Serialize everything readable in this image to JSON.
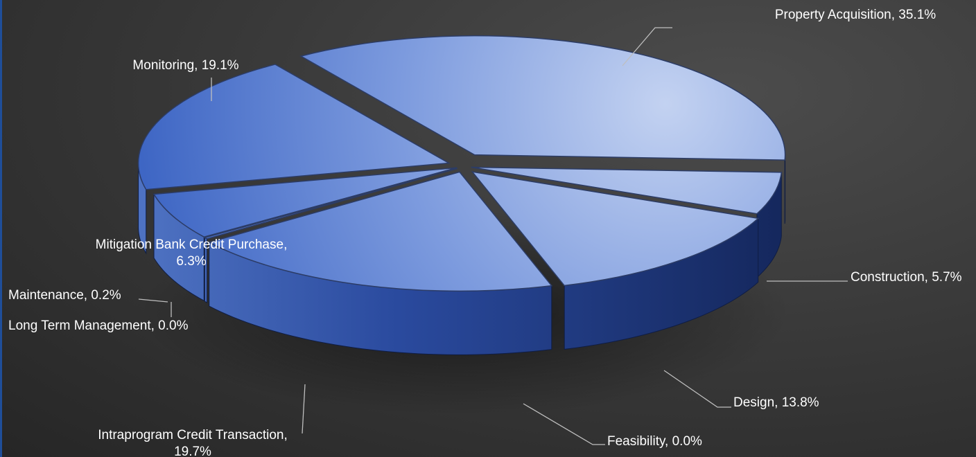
{
  "colors": {
    "top_light": "#c3d2f1",
    "top_mid": "#7d9bde",
    "top_dark": "#3e66c4",
    "side_light": "#4e72c2",
    "side_dark": "#15285e",
    "leader_line": "#bfbfbf",
    "label_text": "#ffffff",
    "background": "#3a3a3a",
    "left_stripe": "#1f4e99"
  },
  "chart_data": {
    "type": "pie",
    "style": "3d-exploded",
    "legend": "none",
    "slices": [
      {
        "label": "Property Acquisition",
        "value": 35.1,
        "value_label": "35.1%"
      },
      {
        "label": "Construction",
        "value": 5.7,
        "value_label": "5.7%"
      },
      {
        "label": "Design",
        "value": 13.8,
        "value_label": "13.8%"
      },
      {
        "label": "Feasibility",
        "value": 0.0,
        "value_label": "0.0%"
      },
      {
        "label": "Intraprogram Credit Transaction",
        "value": 19.7,
        "value_label": "19.7%"
      },
      {
        "label": "Long Term Management",
        "value": 0.0,
        "value_label": "0.0%"
      },
      {
        "label": "Maintenance",
        "value": 0.2,
        "value_label": "0.2%"
      },
      {
        "label": "Mitigation Bank Credit Purchase",
        "value": 6.3,
        "value_label": "6.3%"
      },
      {
        "label": "Monitoring",
        "value": 19.1,
        "value_label": "19.1%"
      }
    ]
  }
}
